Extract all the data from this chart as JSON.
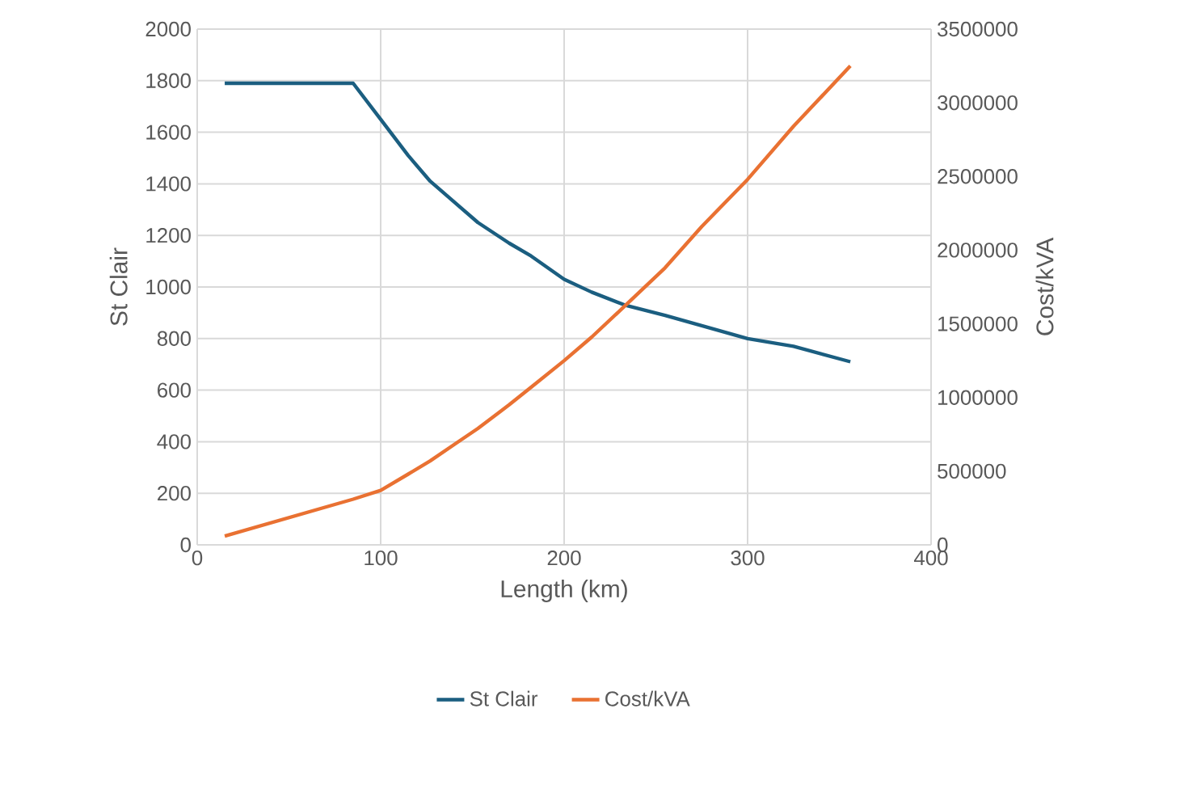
{
  "chart_data": {
    "type": "line",
    "xlabel": "Length (km)",
    "ylabel": "St Clair",
    "y2label": "Cost/kVA",
    "x": [
      15,
      85,
      100,
      115,
      127,
      140,
      153,
      170,
      182,
      200,
      215,
      233,
      255,
      275,
      300,
      325,
      356
    ],
    "series": [
      {
        "name": "St Clair",
        "color": "#1b5e80",
        "values": [
          1790,
          1790,
          1650,
          1510,
          1410,
          1330,
          1250,
          1170,
          1120,
          1030,
          980,
          930,
          890,
          850,
          800,
          770,
          710
        ]
      },
      {
        "name": "Cost/kVA",
        "color": "#e97132",
        "axis": "y2",
        "values": [
          60000,
          310000,
          370000,
          480000,
          570000,
          680000,
          790000,
          950000,
          1070000,
          1250000,
          1410000,
          1620000,
          1880000,
          2160000,
          2480000,
          2840000,
          3250000
        ]
      }
    ],
    "xlim": [
      0,
      400
    ],
    "xticks": [
      0,
      100,
      200,
      300,
      400
    ],
    "ylim": [
      0,
      2000
    ],
    "yticks": [
      0,
      200,
      400,
      600,
      800,
      1000,
      1200,
      1400,
      1600,
      1800,
      2000
    ],
    "y2lim": [
      0,
      3500000
    ],
    "y2ticks": [
      0,
      500000,
      1000000,
      1500000,
      2000000,
      2500000,
      3000000,
      3500000
    ],
    "grid": true,
    "legend": "bottom",
    "marker": "none",
    "line_style": "solid"
  }
}
